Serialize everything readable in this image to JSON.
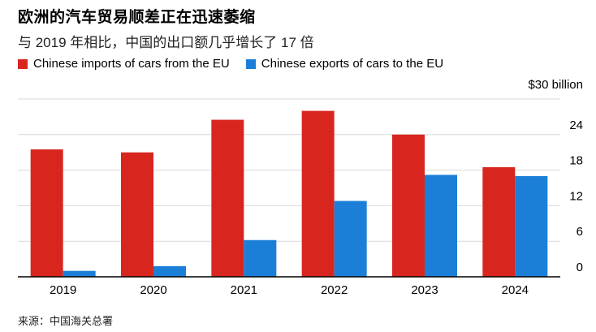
{
  "colors": {
    "imports": "#d8261f",
    "exports": "#1b7fd8",
    "grid": "#d9d9d9",
    "axis": "#000000"
  },
  "chart_data": {
    "type": "bar",
    "title": "欧洲的汽车贸易顺差正在迅速萎缩",
    "subtitle": "与 2019 年相比，中国的出口额几乎增长了 17 倍",
    "unit_label": "$30 billion",
    "categories": [
      "2019",
      "2020",
      "2021",
      "2022",
      "2023",
      "2024"
    ],
    "series": [
      {
        "name": "Chinese imports of cars from the EU",
        "values": [
          21.5,
          21.0,
          26.5,
          28.0,
          24.0,
          18.5
        ]
      },
      {
        "name": "Chinese exports of cars to the EU",
        "values": [
          1.0,
          1.8,
          6.2,
          12.8,
          17.2,
          17.0
        ]
      }
    ],
    "y_ticks": [
      "0",
      "6",
      "12",
      "18",
      "24"
    ],
    "ylim": [
      0,
      30
    ],
    "grid": true,
    "legend_position": "top-left",
    "source": "来源：中国海关总署"
  }
}
